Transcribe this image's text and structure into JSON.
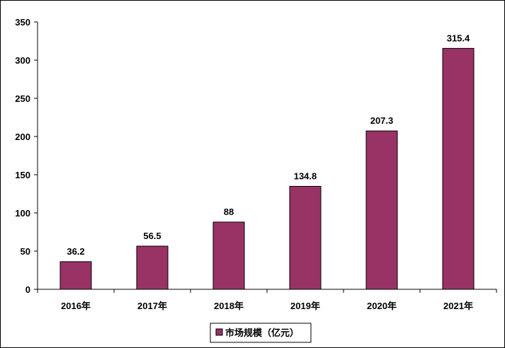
{
  "chart_data": {
    "type": "bar",
    "categories": [
      "2016年",
      "2017年",
      "2018年",
      "2019年",
      "2020年",
      "2021年"
    ],
    "series": [
      {
        "name": "市场规模（亿元）",
        "values": [
          36.2,
          56.5,
          88,
          134.8,
          207.3,
          315.4
        ]
      }
    ],
    "data_labels": [
      "36.2",
      "56.5",
      "88",
      "134.8",
      "207.3",
      "315.4"
    ],
    "ylim": [
      0,
      350
    ],
    "yticks": [
      0,
      50,
      100,
      150,
      200,
      250,
      300,
      350
    ],
    "grid": false,
    "legend_position": "bottom",
    "bar_color": "#993366"
  }
}
